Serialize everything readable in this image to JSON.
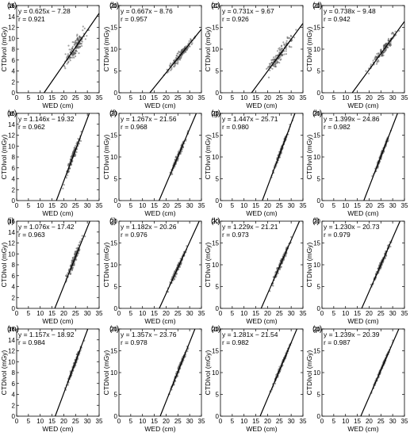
{
  "chart_data": [
    {
      "type": "scatter",
      "label": "(a)",
      "equation": "y = 0.625x − 7.28",
      "r": "r = 0.921",
      "slope": 0.625,
      "intercept": -7.28,
      "xlabel": "WED (cm)",
      "ylabel": "CTDIvol (mGy)",
      "xlim": [
        0,
        35
      ],
      "ylim": [
        0,
        16
      ],
      "xticks": [
        0,
        5,
        10,
        15,
        20,
        25,
        30,
        35
      ],
      "yticks": [
        0,
        2,
        4,
        6,
        8,
        10,
        12,
        14,
        16
      ],
      "points": {
        "xmin": 18.5,
        "xmax": 31,
        "center": 25,
        "spread": 1.6
      }
    },
    {
      "type": "scatter",
      "label": "(b)",
      "equation": "y = 0.667x − 8.76",
      "r": "r = 0.957",
      "slope": 0.667,
      "intercept": -8.76,
      "xlabel": "WED (cm)",
      "ylabel": "CTDIvol (mGy)",
      "xlim": [
        0,
        35
      ],
      "ylim": [
        0,
        20
      ],
      "xticks": [
        0,
        5,
        10,
        15,
        20,
        25,
        30,
        35
      ],
      "yticks": [
        0,
        5,
        10,
        15,
        20
      ],
      "points": {
        "xmin": 17,
        "xmax": 34,
        "center": 26,
        "spread": 1.0
      }
    },
    {
      "type": "scatter",
      "label": "(c)",
      "equation": "y = 0.731x − 9.67",
      "r": "r = 0.926",
      "slope": 0.731,
      "intercept": -9.67,
      "xlabel": "WED (cm)",
      "ylabel": "CTDIvol (mGy)",
      "xlim": [
        0,
        35
      ],
      "ylim": [
        0,
        20
      ],
      "xticks": [
        0,
        5,
        10,
        15,
        20,
        25,
        30,
        35
      ],
      "yticks": [
        0,
        5,
        10,
        15,
        20
      ],
      "points": {
        "xmin": 17,
        "xmax": 33,
        "center": 25,
        "spread": 1.5
      }
    },
    {
      "type": "scatter",
      "label": "(d)",
      "equation": "y = 0.738x − 9.48",
      "r": "r = 0.942",
      "slope": 0.738,
      "intercept": -9.48,
      "xlabel": "WED (cm)",
      "ylabel": "CTDIvol (mGy)",
      "xlim": [
        0,
        35
      ],
      "ylim": [
        0,
        20
      ],
      "xticks": [
        0,
        5,
        10,
        15,
        20,
        25,
        30,
        35
      ],
      "yticks": [
        0,
        5,
        10,
        15,
        20
      ],
      "points": {
        "xmin": 18,
        "xmax": 34,
        "center": 26,
        "spread": 1.2
      }
    },
    {
      "type": "scatter",
      "label": "(e)",
      "equation": "y = 1.146x − 19.32",
      "r": "r = 0.962",
      "slope": 1.146,
      "intercept": -19.32,
      "xlabel": "WED (cm)",
      "ylabel": "CTDIvol (mGy)",
      "xlim": [
        0,
        35
      ],
      "ylim": [
        0,
        16
      ],
      "xticks": [
        0,
        5,
        10,
        15,
        20,
        25,
        30,
        35
      ],
      "yticks": [
        0,
        2,
        4,
        6,
        8,
        10,
        12,
        14,
        16
      ],
      "points": {
        "xmin": 19.5,
        "xmax": 28.5,
        "center": 24,
        "spread": 0.9
      }
    },
    {
      "type": "scatter",
      "label": "(f)",
      "equation": "y = 1.267x − 21.56",
      "r": "r = 0.968",
      "slope": 1.267,
      "intercept": -21.56,
      "xlabel": "WED (cm)",
      "ylabel": "CTDIvol (mGy)",
      "xlim": [
        0,
        35
      ],
      "ylim": [
        0,
        20
      ],
      "xticks": [
        0,
        5,
        10,
        15,
        20,
        25,
        30,
        35
      ],
      "yticks": [
        0,
        5,
        10,
        15,
        20
      ],
      "points": {
        "xmin": 19.5,
        "xmax": 30,
        "center": 25,
        "spread": 0.8
      }
    },
    {
      "type": "scatter",
      "label": "(g)",
      "equation": "y = 1.447x − 25.71",
      "r": "r = 0.980",
      "slope": 1.447,
      "intercept": -25.71,
      "xlabel": "WED (cm)",
      "ylabel": "CTDIvol (mGy)",
      "xlim": [
        0,
        35
      ],
      "ylim": [
        0,
        20
      ],
      "xticks": [
        0,
        5,
        10,
        15,
        20,
        25,
        30,
        35
      ],
      "yticks": [
        0,
        5,
        10,
        15,
        20
      ],
      "points": {
        "xmin": 20.5,
        "xmax": 31,
        "center": 25.5,
        "spread": 0.7
      }
    },
    {
      "type": "scatter",
      "label": "(h)",
      "equation": "y = 1.399x − 24.86",
      "r": "r = 0.982",
      "slope": 1.399,
      "intercept": -24.86,
      "xlabel": "WED (cm)",
      "ylabel": "CTDIvol (mGy)",
      "xlim": [
        0,
        35
      ],
      "ylim": [
        0,
        20
      ],
      "xticks": [
        0,
        5,
        10,
        15,
        20,
        25,
        30,
        35
      ],
      "yticks": [
        0,
        5,
        10,
        15,
        20
      ],
      "points": {
        "xmin": 20.5,
        "xmax": 31,
        "center": 25.5,
        "spread": 0.6
      }
    },
    {
      "type": "scatter",
      "label": "(i)",
      "equation": "y = 1.076x − 17.42",
      "r": "r = 0.963",
      "slope": 1.076,
      "intercept": -17.42,
      "xlabel": "WED (cm)",
      "ylabel": "CTDIvol (mGy)",
      "xlim": [
        0,
        35
      ],
      "ylim": [
        0,
        16
      ],
      "xticks": [
        0,
        5,
        10,
        15,
        20,
        25,
        30,
        35
      ],
      "yticks": [
        0,
        2,
        4,
        6,
        8,
        10,
        12,
        14,
        16
      ],
      "points": {
        "xmin": 19.5,
        "xmax": 30,
        "center": 24.5,
        "spread": 0.9
      }
    },
    {
      "type": "scatter",
      "label": "(j)",
      "equation": "y = 1.182x − 20.26",
      "r": "r = 0.976",
      "slope": 1.182,
      "intercept": -20.26,
      "xlabel": "WED (cm)",
      "ylabel": "CTDIvol (mGy)",
      "xlim": [
        0,
        35
      ],
      "ylim": [
        0,
        20
      ],
      "xticks": [
        0,
        5,
        10,
        15,
        20,
        25,
        30,
        35
      ],
      "yticks": [
        0,
        5,
        10,
        15,
        20
      ],
      "points": {
        "xmin": 20,
        "xmax": 30.5,
        "center": 25,
        "spread": 0.7
      }
    },
    {
      "type": "scatter",
      "label": "(k)",
      "equation": "y = 1.229x − 21.21",
      "r": "r = 0.973",
      "slope": 1.229,
      "intercept": -21.21,
      "xlabel": "WED (cm)",
      "ylabel": "CTDIvol (mGy)",
      "xlim": [
        0,
        35
      ],
      "ylim": [
        0,
        20
      ],
      "xticks": [
        0,
        5,
        10,
        15,
        20,
        25,
        30,
        35
      ],
      "yticks": [
        0,
        5,
        10,
        15,
        20
      ],
      "points": {
        "xmin": 20,
        "xmax": 32,
        "center": 25.5,
        "spread": 0.8
      }
    },
    {
      "type": "scatter",
      "label": "(l)",
      "equation": "y = 1.230x − 20.73",
      "r": "r = 0.979",
      "slope": 1.23,
      "intercept": -20.73,
      "xlabel": "WED (cm)",
      "ylabel": "CTDIvol (mGy)",
      "xlim": [
        0,
        35
      ],
      "ylim": [
        0,
        20
      ],
      "xticks": [
        0,
        5,
        10,
        15,
        20,
        25,
        30,
        35
      ],
      "yticks": [
        0,
        5,
        10,
        15,
        20
      ],
      "points": {
        "xmin": 19.5,
        "xmax": 31,
        "center": 25,
        "spread": 0.7
      }
    },
    {
      "type": "scatter",
      "label": "(m)",
      "equation": "y = 1.157x − 18.92",
      "r": "r = 0.984",
      "slope": 1.157,
      "intercept": -18.92,
      "xlabel": "WED (cm)",
      "ylabel": "CTDIvol (mGy)",
      "xlim": [
        0,
        35
      ],
      "ylim": [
        0,
        16
      ],
      "xticks": [
        0,
        5,
        10,
        15,
        20,
        25,
        30,
        35
      ],
      "yticks": [
        0,
        2,
        4,
        6,
        8,
        10,
        12,
        14,
        16
      ],
      "points": {
        "xmin": 19.5,
        "xmax": 29.5,
        "center": 24.5,
        "spread": 0.6
      }
    },
    {
      "type": "scatter",
      "label": "(n)",
      "equation": "y = 1.357x − 23.76",
      "r": "r = 0.978",
      "slope": 1.357,
      "intercept": -23.76,
      "xlabel": "WED (cm)",
      "ylabel": "CTDIvol (mGy)",
      "xlim": [
        0,
        35
      ],
      "ylim": [
        0,
        20
      ],
      "xticks": [
        0,
        5,
        10,
        15,
        20,
        25,
        30,
        35
      ],
      "yticks": [
        0,
        5,
        10,
        15,
        20
      ],
      "points": {
        "xmin": 20,
        "xmax": 31,
        "center": 25.5,
        "spread": 0.7
      }
    },
    {
      "type": "scatter",
      "label": "(o)",
      "equation": "y = 1.281x − 21.54",
      "r": "r = 0.982",
      "slope": 1.281,
      "intercept": -21.54,
      "xlabel": "WED (cm)",
      "ylabel": "CTDIvol (mGy)",
      "xlim": [
        0,
        35
      ],
      "ylim": [
        0,
        20
      ],
      "xticks": [
        0,
        5,
        10,
        15,
        20,
        25,
        30,
        35
      ],
      "yticks": [
        0,
        5,
        10,
        15,
        20
      ],
      "points": {
        "xmin": 19.5,
        "xmax": 31.5,
        "center": 25.5,
        "spread": 0.6
      }
    },
    {
      "type": "scatter",
      "label": "(p)",
      "equation": "y = 1.239x − 20.39",
      "r": "r = 0.987",
      "slope": 1.239,
      "intercept": -20.39,
      "xlabel": "WED (cm)",
      "ylabel": "CTDIvol (mGy)",
      "xlim": [
        0,
        35
      ],
      "ylim": [
        0,
        20
      ],
      "xticks": [
        0,
        5,
        10,
        15,
        20,
        25,
        30,
        35
      ],
      "yticks": [
        0,
        5,
        10,
        15,
        20
      ],
      "points": {
        "xmin": 19.5,
        "xmax": 31.5,
        "center": 25.5,
        "spread": 0.5
      }
    }
  ],
  "colors": {
    "axis": "#000000",
    "points": "#555555",
    "fit_line": "#000000",
    "background": "#ffffff"
  }
}
